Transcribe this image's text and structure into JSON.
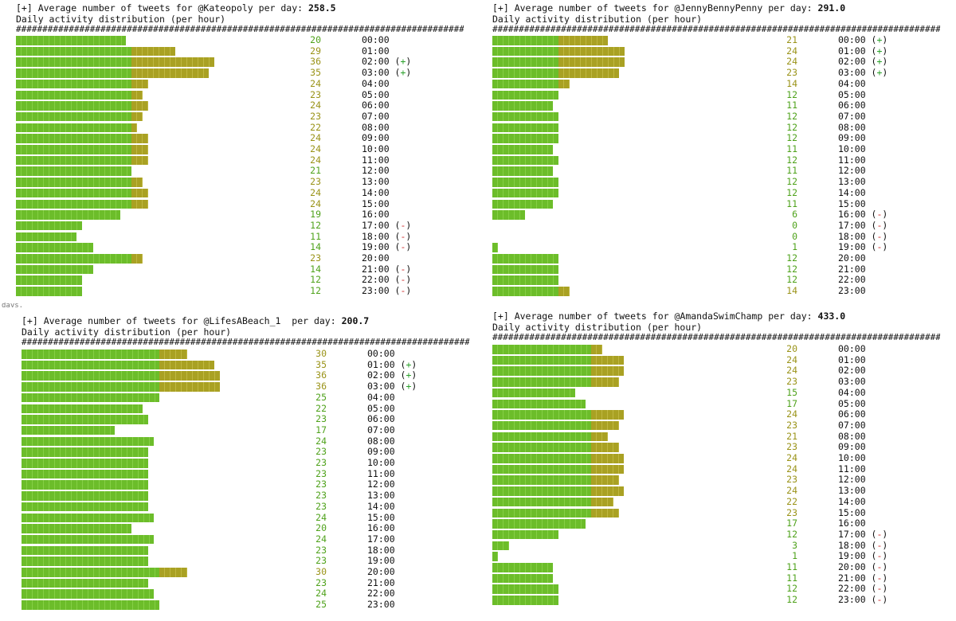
{
  "prefix": "[+] Average number of tweets for ",
  "per_day_label": " per day: ",
  "subtitle": "Daily activity distribution (per hour)",
  "separator": "##########################################################################################################",
  "clipped_fragment": "days.",
  "colors": {
    "green": "#6cbd2a",
    "olive": "#a9a123",
    "plus": "#2aa02a",
    "minus": "#d03030"
  },
  "chart_data": [
    {
      "type": "bar",
      "user": "@Kateopoly",
      "avg_per_day": "258.5",
      "categories": [
        "00:00",
        "01:00",
        "02:00",
        "03:00",
        "04:00",
        "05:00",
        "06:00",
        "07:00",
        "08:00",
        "09:00",
        "10:00",
        "11:00",
        "12:00",
        "13:00",
        "14:00",
        "15:00",
        "16:00",
        "17:00",
        "18:00",
        "19:00",
        "20:00",
        "21:00",
        "22:00",
        "23:00"
      ],
      "values": [
        20,
        29,
        36,
        35,
        24,
        23,
        24,
        23,
        22,
        24,
        24,
        24,
        21,
        23,
        24,
        24,
        19,
        12,
        11,
        14,
        23,
        14,
        12,
        12
      ],
      "baseline": 21,
      "markers": [
        "",
        "",
        "(+)",
        "(+)",
        "",
        "",
        "",
        "",
        "",
        "",
        "",
        "",
        "",
        "",
        "",
        "",
        "",
        "(-)",
        "(-)",
        "(-)",
        "",
        "(-)",
        "(-)",
        "(-)"
      ]
    },
    {
      "type": "bar",
      "user": "@JennyBennyPenny",
      "avg_per_day": "291.0",
      "categories": [
        "00:00",
        "01:00",
        "02:00",
        "03:00",
        "04:00",
        "05:00",
        "06:00",
        "07:00",
        "08:00",
        "09:00",
        "10:00",
        "11:00",
        "12:00",
        "13:00",
        "14:00",
        "15:00",
        "16:00",
        "17:00",
        "18:00",
        "19:00",
        "20:00",
        "21:00",
        "22:00",
        "23:00"
      ],
      "values": [
        21,
        24,
        24,
        23,
        14,
        12,
        11,
        12,
        12,
        12,
        11,
        12,
        11,
        12,
        12,
        11,
        6,
        0,
        0,
        1,
        12,
        12,
        12,
        14
      ],
      "baseline": 12,
      "markers": [
        "(+)",
        "(+)",
        "(+)",
        "(+)",
        "",
        "",
        "",
        "",
        "",
        "",
        "",
        "",
        "",
        "",
        "",
        "",
        "(-)",
        "(-)",
        "(-)",
        "(-)",
        "",
        "",
        "",
        ""
      ]
    },
    {
      "type": "bar",
      "user": "@LifesABeach_1 ",
      "avg_per_day": "200.7",
      "categories": [
        "00:00",
        "01:00",
        "02:00",
        "03:00",
        "04:00",
        "05:00",
        "06:00",
        "07:00",
        "08:00",
        "09:00",
        "10:00",
        "11:00",
        "12:00",
        "13:00",
        "14:00",
        "15:00",
        "16:00",
        "17:00",
        "18:00",
        "19:00",
        "20:00",
        "21:00",
        "22:00",
        "23:00"
      ],
      "values": [
        30,
        35,
        36,
        36,
        25,
        22,
        23,
        17,
        24,
        23,
        23,
        23,
        23,
        23,
        23,
        24,
        20,
        24,
        23,
        23,
        30,
        23,
        24,
        25
      ],
      "baseline": 25,
      "markers": [
        "",
        "(+)",
        "(+)",
        "(+)",
        "",
        "",
        "",
        "",
        "",
        "",
        "",
        "",
        "",
        "",
        "",
        "",
        "",
        "",
        "",
        "",
        "",
        "",
        "",
        ""
      ]
    },
    {
      "type": "bar",
      "user": "@AmandaSwimChamp",
      "avg_per_day": "433.0",
      "categories": [
        "00:00",
        "01:00",
        "02:00",
        "03:00",
        "04:00",
        "05:00",
        "06:00",
        "07:00",
        "08:00",
        "09:00",
        "10:00",
        "11:00",
        "12:00",
        "13:00",
        "14:00",
        "15:00",
        "16:00",
        "17:00",
        "18:00",
        "19:00",
        "20:00",
        "21:00",
        "22:00",
        "23:00"
      ],
      "values": [
        20,
        24,
        24,
        23,
        15,
        17,
        24,
        23,
        21,
        23,
        24,
        24,
        23,
        24,
        22,
        23,
        17,
        12,
        3,
        1,
        11,
        11,
        12,
        12
      ],
      "baseline": 18,
      "markers": [
        "",
        "",
        "",
        "",
        "",
        "",
        "",
        "",
        "",
        "",
        "",
        "",
        "",
        "",
        "",
        "",
        "",
        "(-)",
        "(-)",
        "(-)",
        "(-)",
        "(-)",
        "(-)",
        "(-)"
      ]
    }
  ]
}
